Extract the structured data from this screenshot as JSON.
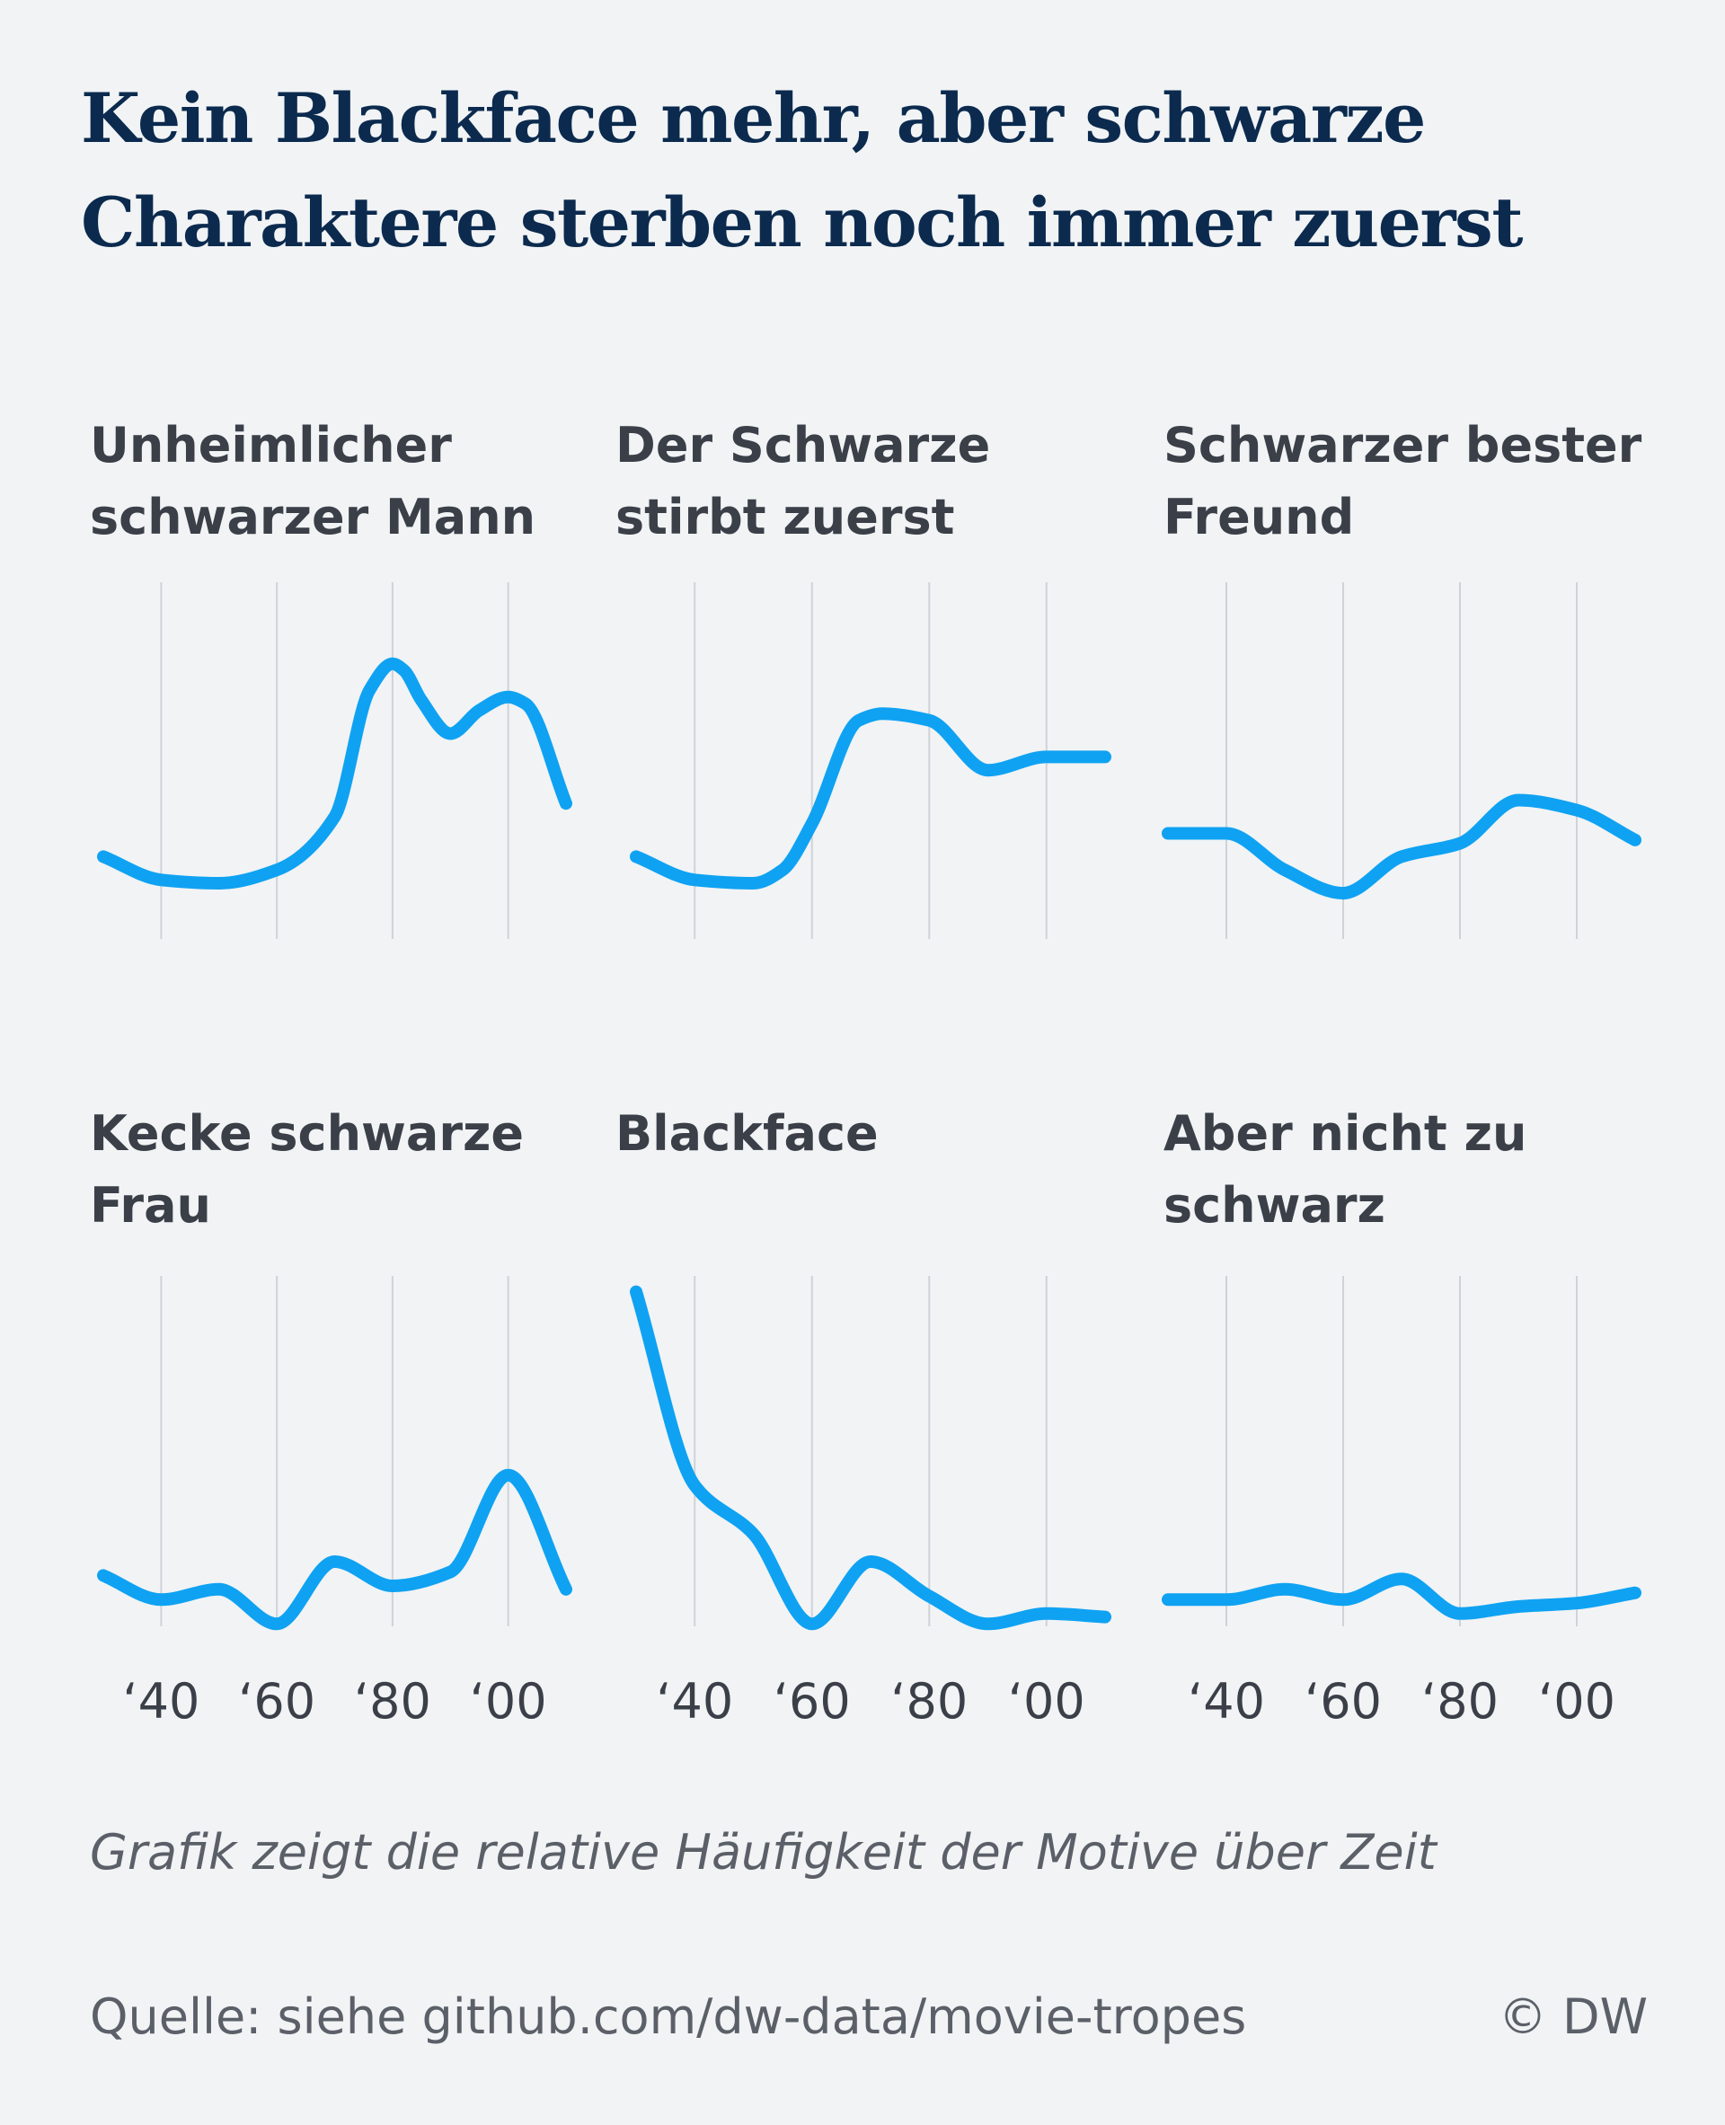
{
  "title": {
    "line1": "Kein Blackface mehr, aber schwarze",
    "line2": "Charaktere sterben noch immer zuerst"
  },
  "note": "Grafik zeigt die relative Häufigkeit der Motive über Zeit",
  "source": "Quelle: siehe github.com/dw-data/movie-tropes",
  "credit": "© DW",
  "colors": {
    "line": "#0fa2f2",
    "grid": "#cfd3d8",
    "background": "#f1f3f5",
    "title": "#0b2a4e",
    "text": "#3a3f48"
  },
  "chart_data": [
    {
      "type": "line",
      "title_lines": [
        "Unheimlicher",
        "schwarzer Mann"
      ],
      "x": [
        1930,
        1940,
        1950,
        1960,
        1970,
        1976,
        1980,
        1982,
        1985,
        1990,
        1995,
        2000,
        2003,
        2010
      ],
      "y": [
        0.18,
        0.11,
        0.1,
        0.14,
        0.3,
        0.68,
        0.76,
        0.74,
        0.65,
        0.55,
        0.62,
        0.66,
        0.64,
        0.34
      ],
      "x_ticks": [
        "‘40",
        "‘60",
        "‘80",
        "‘00"
      ],
      "x_tick_values": [
        1940,
        1960,
        1980,
        2000
      ],
      "xlim": [
        1930,
        2010
      ],
      "ylim": [
        0,
        1
      ],
      "grid": "vertical"
    },
    {
      "type": "line",
      "title_lines": [
        "Der Schwarze",
        "stirbt zuerst"
      ],
      "x": [
        1930,
        1940,
        1950,
        1955,
        1960,
        1968,
        1972,
        1980,
        1990,
        2000,
        2010
      ],
      "y": [
        0.18,
        0.11,
        0.1,
        0.14,
        0.28,
        0.59,
        0.61,
        0.59,
        0.44,
        0.48,
        0.48
      ],
      "x_ticks": [
        "‘40",
        "‘60",
        "‘80",
        "‘00"
      ],
      "x_tick_values": [
        1940,
        1960,
        1980,
        2000
      ],
      "xlim": [
        1930,
        2010
      ],
      "ylim": [
        0,
        1
      ],
      "grid": "vertical"
    },
    {
      "type": "line",
      "title_lines": [
        "Schwarzer bester",
        "Freund"
      ],
      "x": [
        1930,
        1940,
        1950,
        1960,
        1970,
        1980,
        1990,
        2000,
        2010
      ],
      "y": [
        0.25,
        0.25,
        0.14,
        0.07,
        0.18,
        0.22,
        0.35,
        0.32,
        0.23
      ],
      "x_ticks": [
        "‘40",
        "‘60",
        "‘80",
        "‘00"
      ],
      "x_tick_values": [
        1940,
        1960,
        1980,
        2000
      ],
      "xlim": [
        1930,
        2010
      ],
      "ylim": [
        0,
        1
      ],
      "grid": "vertical"
    },
    {
      "type": "line",
      "title_lines": [
        "Kecke schwarze",
        "Frau"
      ],
      "x": [
        1930,
        1940,
        1950,
        1960,
        1970,
        1980,
        1990,
        2000,
        2010
      ],
      "y": [
        0.16,
        0.09,
        0.12,
        0.02,
        0.2,
        0.13,
        0.17,
        0.45,
        0.12
      ],
      "x_ticks": [
        "‘40",
        "‘60",
        "‘80",
        "‘00"
      ],
      "x_tick_values": [
        1940,
        1960,
        1980,
        2000
      ],
      "xlim": [
        1930,
        2010
      ],
      "ylim": [
        0,
        1
      ],
      "grid": "vertical"
    },
    {
      "type": "line",
      "title_lines": [
        "Blackface"
      ],
      "x": [
        1930,
        1940,
        1950,
        1960,
        1970,
        1980,
        1990,
        2000,
        2010
      ],
      "y": [
        0.98,
        0.42,
        0.28,
        0.02,
        0.2,
        0.1,
        0.02,
        0.05,
        0.04
      ],
      "x_ticks": [
        "‘40",
        "‘60",
        "‘80",
        "‘00"
      ],
      "x_tick_values": [
        1940,
        1960,
        1980,
        2000
      ],
      "xlim": [
        1930,
        2010
      ],
      "ylim": [
        0,
        1
      ],
      "grid": "vertical"
    },
    {
      "type": "line",
      "title_lines": [
        "Aber nicht zu",
        "schwarz"
      ],
      "x": [
        1930,
        1940,
        1950,
        1960,
        1970,
        1980,
        1990,
        2000,
        2010
      ],
      "y": [
        0.09,
        0.09,
        0.12,
        0.09,
        0.15,
        0.05,
        0.07,
        0.08,
        0.11
      ],
      "x_ticks": [
        "‘40",
        "‘60",
        "‘80",
        "‘00"
      ],
      "x_tick_values": [
        1940,
        1960,
        1980,
        2000
      ],
      "xlim": [
        1930,
        2010
      ],
      "ylim": [
        0,
        1
      ],
      "grid": "vertical"
    }
  ]
}
